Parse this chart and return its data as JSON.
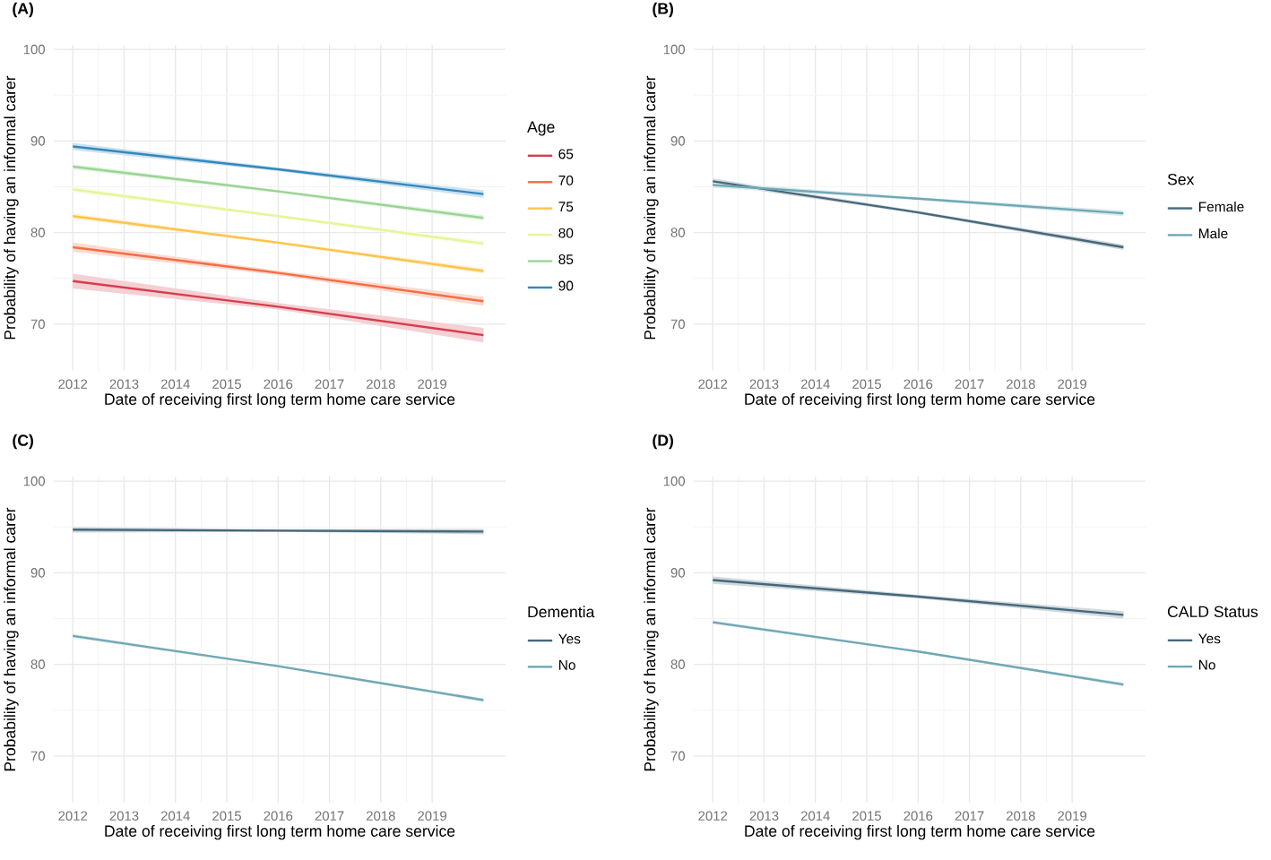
{
  "chart_data": [
    {
      "type": "line",
      "title": "(A)",
      "xlabel": "Date of receiving first long term home care service",
      "ylabel": "Probability of having an informal carer",
      "legend_title": "Age",
      "x": [
        2012,
        2016,
        2020
      ],
      "xlim": [
        2011.63,
        2020.43
      ],
      "ylim": [
        64.9,
        100.5
      ],
      "xticks": [
        2012,
        2013,
        2014,
        2015,
        2016,
        2017,
        2018,
        2019
      ],
      "yticks": [
        70,
        80,
        90,
        100
      ],
      "grid": true,
      "legend": "right",
      "series": [
        {
          "name": "65",
          "color": "#d53e4f",
          "values": [
            74.7,
            71.9,
            68.8
          ],
          "lower": [
            73.9,
            71.6,
            68.0
          ],
          "upper": [
            75.5,
            72.3,
            69.6
          ]
        },
        {
          "name": "70",
          "color": "#f46d43",
          "values": [
            78.4,
            75.6,
            72.5
          ],
          "lower": [
            77.9,
            75.35,
            72.0
          ],
          "upper": [
            78.9,
            75.85,
            73.0
          ]
        },
        {
          "name": "75",
          "color": "#fdc34a",
          "values": [
            81.8,
            78.9,
            75.8
          ],
          "lower": [
            81.5,
            78.75,
            75.5
          ],
          "upper": [
            82.1,
            79.05,
            76.1
          ]
        },
        {
          "name": "80",
          "color": "#e6f598",
          "values": [
            84.7,
            81.8,
            78.8
          ],
          "lower": [
            84.4,
            81.65,
            78.5
          ],
          "upper": [
            85.0,
            81.95,
            79.1
          ]
        },
        {
          "name": "85",
          "color": "#99d594",
          "values": [
            87.2,
            84.5,
            81.6
          ],
          "lower": [
            86.9,
            84.35,
            81.3
          ],
          "upper": [
            87.5,
            84.65,
            81.9
          ]
        },
        {
          "name": "90",
          "color": "#3288bd",
          "values": [
            89.4,
            86.9,
            84.2
          ],
          "lower": [
            89.0,
            86.7,
            83.8
          ],
          "upper": [
            89.8,
            87.1,
            84.6
          ]
        }
      ]
    },
    {
      "type": "line",
      "title": "(B)",
      "xlabel": "Date of receiving first long term home care service",
      "ylabel": "Probability of having an informal carer",
      "legend_title": "Sex",
      "x": [
        2012,
        2016,
        2020
      ],
      "xlim": [
        2011.63,
        2020.43
      ],
      "ylim": [
        64.9,
        100.5
      ],
      "xticks": [
        2012,
        2013,
        2014,
        2015,
        2016,
        2017,
        2018,
        2019
      ],
      "yticks": [
        70,
        80,
        90,
        100
      ],
      "grid": true,
      "legend": "right",
      "series": [
        {
          "name": "Female",
          "color": "#46687a",
          "values": [
            85.6,
            82.2,
            78.4
          ],
          "lower": [
            85.3,
            82.05,
            78.1
          ],
          "upper": [
            85.9,
            82.35,
            78.7
          ]
        },
        {
          "name": "Male",
          "color": "#6fa8b5",
          "values": [
            85.2,
            83.7,
            82.1
          ],
          "lower": [
            84.9,
            83.55,
            81.8
          ],
          "upper": [
            85.5,
            83.85,
            82.4
          ]
        }
      ]
    },
    {
      "type": "line",
      "title": "(C)",
      "xlabel": "Date of receiving first long term home care service",
      "ylabel": "Probability of having an informal carer",
      "legend_title": "Dementia",
      "x": [
        2012,
        2016,
        2020
      ],
      "xlim": [
        2011.63,
        2020.43
      ],
      "ylim": [
        64.9,
        100.5
      ],
      "xticks": [
        2012,
        2013,
        2014,
        2015,
        2016,
        2017,
        2018,
        2019
      ],
      "yticks": [
        70,
        80,
        90,
        100
      ],
      "grid": true,
      "legend": "right",
      "series": [
        {
          "name": "Yes",
          "color": "#46687a",
          "values": [
            94.7,
            94.6,
            94.5
          ],
          "lower": [
            94.4,
            94.45,
            94.2
          ],
          "upper": [
            95.0,
            94.75,
            94.8
          ]
        },
        {
          "name": "No",
          "color": "#6fa8b5",
          "values": [
            83.1,
            79.8,
            76.1
          ],
          "lower": [
            82.9,
            79.7,
            75.9
          ],
          "upper": [
            83.3,
            79.9,
            76.3
          ]
        }
      ]
    },
    {
      "type": "line",
      "title": "(D)",
      "xlabel": "Date of receiving first long term home care service",
      "ylabel": "Probability of having an informal carer",
      "legend_title": "CALD Status",
      "x": [
        2012,
        2016,
        2020
      ],
      "xlim": [
        2011.63,
        2020.43
      ],
      "ylim": [
        64.9,
        100.5
      ],
      "xticks": [
        2012,
        2013,
        2014,
        2015,
        2016,
        2017,
        2018,
        2019
      ],
      "yticks": [
        70,
        80,
        90,
        100
      ],
      "grid": true,
      "legend": "right",
      "series": [
        {
          "name": "Yes",
          "color": "#46687a",
          "values": [
            89.2,
            87.4,
            85.4
          ],
          "lower": [
            88.8,
            87.2,
            85.0
          ],
          "upper": [
            89.6,
            87.6,
            85.8
          ]
        },
        {
          "name": "No",
          "color": "#6fa8b5",
          "values": [
            84.6,
            81.4,
            77.8
          ],
          "lower": [
            84.4,
            81.3,
            77.6
          ],
          "upper": [
            84.8,
            81.5,
            78.0
          ]
        }
      ]
    }
  ]
}
